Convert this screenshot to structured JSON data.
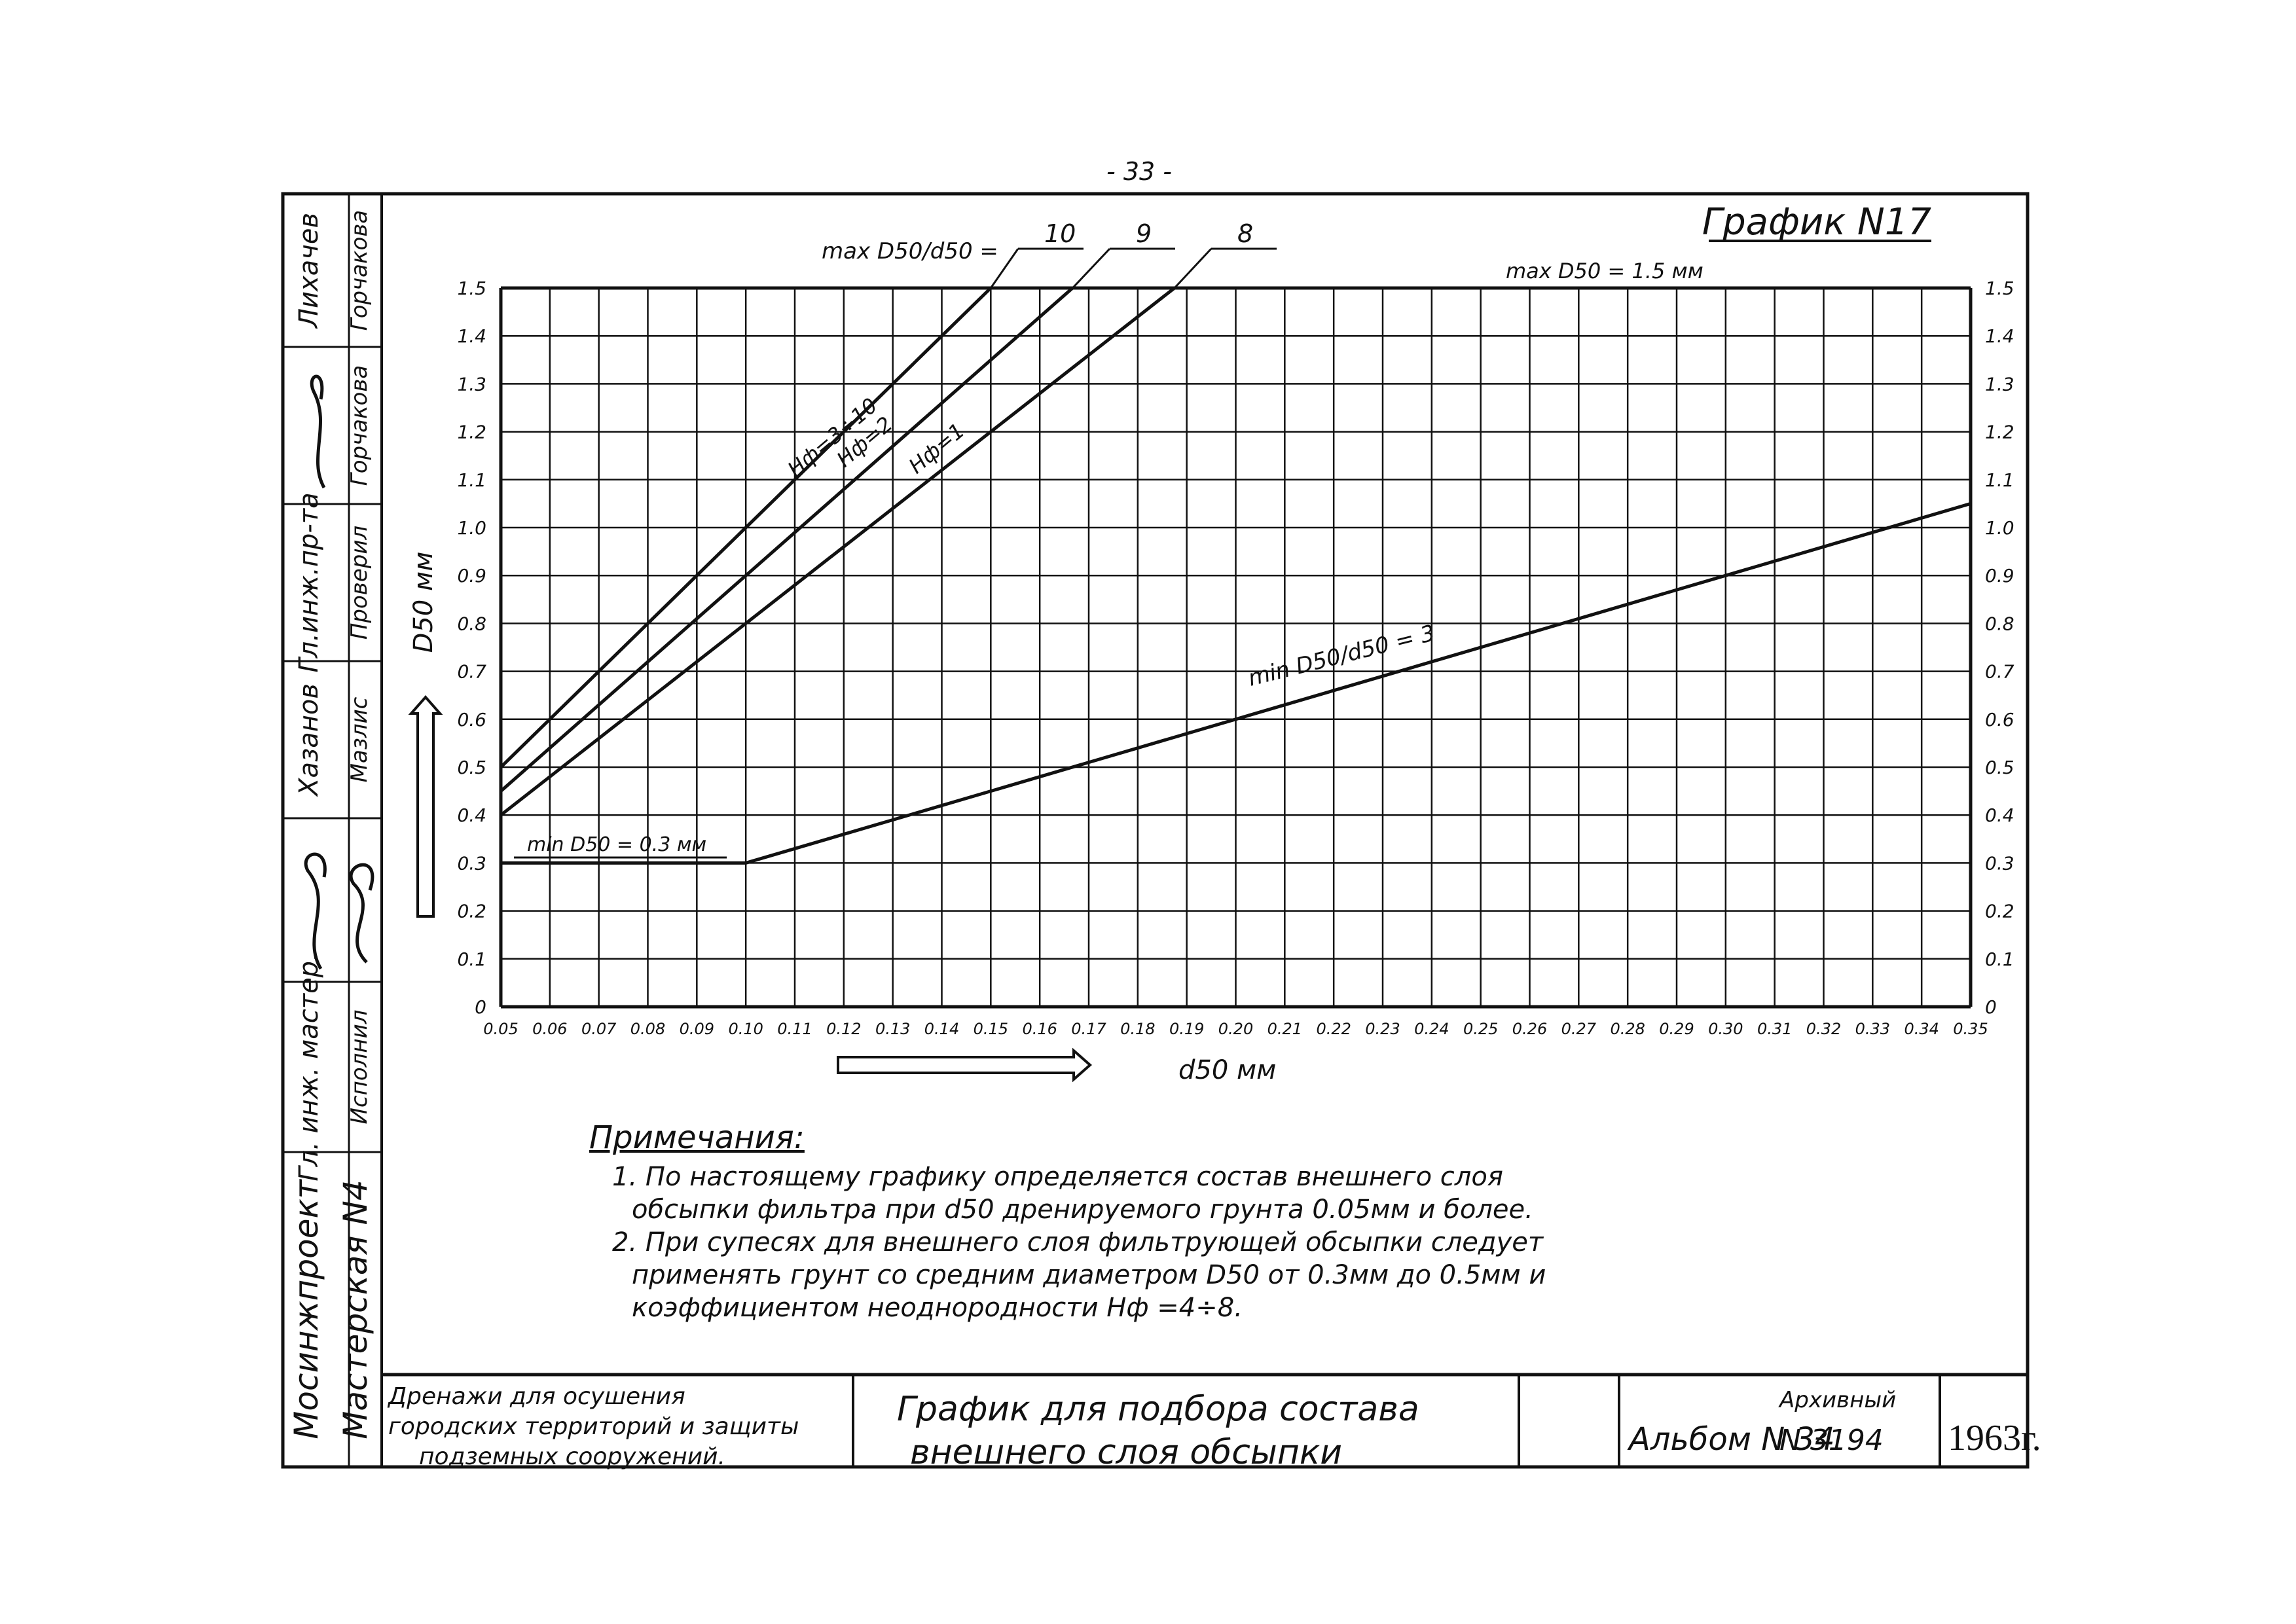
{
  "page_number": "- 33 -",
  "chart_number": "График N17",
  "left_strip": {
    "col1": [
      "Лихачев",
      "",
      "Гл.инж.пр-та",
      "Хазанов",
      "",
      "Гл. инж. мастер.",
      "Мосинжпроект"
    ],
    "col2": [
      "Горчакова",
      "Горчакова",
      "Проверил",
      "Мазлис",
      "",
      "Исполнил",
      "Мастерская N4"
    ]
  },
  "title_block": {
    "project": "Дренажи для осушения городских территорий и защиты подземных сооружений.",
    "drawing_title": "График для подбора состава внешнего слоя обсыпки",
    "album": "Альбом N 34",
    "archive_label": "Архивный",
    "archive_number": "N 3194",
    "year": "1963г."
  },
  "notes": {
    "heading": "Примечания:",
    "items": [
      "1. По настоящему графику определяется состав внешнего слоя",
      "обсыпки фильтра при d50 дренируемого грунта 0.05мм и более.",
      "2. При супесях для внешнего слоя фильтрующей обсыпки следует",
      "применять грунт со средним диаметром D50 от 0.3мм до 0.5мм и",
      "коэффициентом неоднородности Hф =4÷8."
    ]
  },
  "chart_data": {
    "type": "line",
    "xlabel": "d50 мм",
    "ylabel": "D50 мм",
    "xlim": [
      0.05,
      0.35
    ],
    "ylim": [
      0,
      1.5
    ],
    "x_ticks": [
      "0.05",
      "0.06",
      "0.07",
      "0.08",
      "0.09",
      "0.10",
      "0.11",
      "0.12",
      "0.13",
      "0.14",
      "0.15",
      "0.16",
      "0.17",
      "0.18",
      "0.19",
      "0.20",
      "0.21",
      "0.22",
      "0.23",
      "0.24",
      "0.25",
      "0.26",
      "0.27",
      "0.28",
      "0.29",
      "0.30",
      "0.31",
      "0.32",
      "0.33",
      "0.34",
      "0.35"
    ],
    "y_ticks": [
      "0",
      "0.1",
      "0.2",
      "0.3",
      "0.4",
      "0.5",
      "0.6",
      "0.7",
      "0.8",
      "0.9",
      "1.0",
      "1.1",
      "1.2",
      "1.3",
      "1.4",
      "1.5"
    ],
    "grid": true,
    "ratio_label": "max D50/d50 =",
    "max_label": "max D50 = 1.5 мм",
    "min_label": "min D50 = 0.3 мм",
    "min_ratio_label": "min D50/d50 = 3",
    "series": [
      {
        "name": "Hф=3÷10",
        "ratio_label": "10",
        "x": [
          0.05,
          0.15
        ],
        "y": [
          0.5,
          1.5
        ]
      },
      {
        "name": "Hф=2",
        "ratio_label": "9",
        "x": [
          0.05,
          0.1667
        ],
        "y": [
          0.45,
          1.5
        ]
      },
      {
        "name": "Hф=1",
        "ratio_label": "8",
        "x": [
          0.05,
          0.1875
        ],
        "y": [
          0.4,
          1.5
        ]
      },
      {
        "name": "",
        "x": [
          0.05,
          0.1,
          0.35
        ],
        "y": [
          0.3,
          0.3,
          1.05
        ]
      }
    ]
  }
}
